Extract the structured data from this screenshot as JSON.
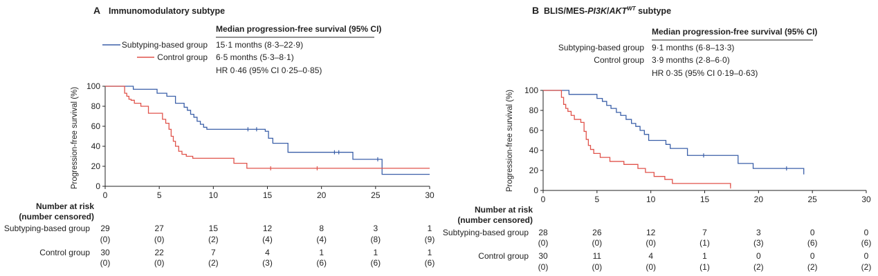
{
  "panels": [
    {
      "label": "A",
      "title": "Immunomodulatory subtype",
      "title_sup": "",
      "header": "Median progression-free survival (95% CI)",
      "rows": [
        {
          "name": "Subtyping-based group",
          "value": "15·1 months (8·3–22·9)"
        },
        {
          "name": "Control group",
          "value": "6·5 months (5·3–8·1)"
        }
      ],
      "hr": "HR 0·46 (95% CI 0·25–0·85)",
      "risk": {
        "header_line1": "Number at risk",
        "header_line2": "(number censored)",
        "groups": [
          {
            "name": "Subtyping-based group",
            "at_risk": [
              "29",
              "27",
              "15",
              "12",
              "8",
              "3",
              "1"
            ],
            "censored": [
              "(0)",
              "(0)",
              "(2)",
              "(4)",
              "(4)",
              "(8)",
              "(9)"
            ]
          },
          {
            "name": "Control group",
            "at_risk": [
              "30",
              "22",
              "7",
              "4",
              "1",
              "1",
              "1"
            ],
            "censored": [
              "(0)",
              "(0)",
              "(2)",
              "(3)",
              "(6)",
              "(6)",
              "(6)"
            ]
          }
        ]
      }
    },
    {
      "label": "B",
      "title": "BLIS/MES-",
      "title_italic": "PI3K",
      "title_mid": "/",
      "title_italic2": "AKT",
      "title_sup": "WT",
      "title_end": " subtype",
      "header": "Median progression-free survival (95% CI)",
      "rows": [
        {
          "name": "Subtyping-based group",
          "value": "9·1 months (6·8–13·3)"
        },
        {
          "name": "Control group",
          "value": "3·9 months (2·8–6·0)"
        }
      ],
      "hr": "HR 0·35 (95% CI 0·19–0·63)",
      "risk": {
        "header_line1": "Number at risk",
        "header_line2": "(number censored)",
        "groups": [
          {
            "name": "Subtyping-based group",
            "at_risk": [
              "28",
              "26",
              "12",
              "7",
              "3",
              "0",
              "0"
            ],
            "censored": [
              "(0)",
              "(0)",
              "(0)",
              "(1)",
              "(3)",
              "(6)",
              "(6)"
            ]
          },
          {
            "name": "Control group",
            "at_risk": [
              "30",
              "11",
              "4",
              "1",
              "0",
              "0",
              "0"
            ],
            "censored": [
              "(0)",
              "(0)",
              "(0)",
              "(1)",
              "(2)",
              "(2)",
              "(2)"
            ]
          }
        ]
      }
    }
  ],
  "chart_data": [
    {
      "type": "line",
      "step": true,
      "title": "Immunomodulatory subtype",
      "xlabel": "",
      "ylabel": "Progression-free survival (%)",
      "xlim": [
        0,
        30
      ],
      "ylim": [
        0,
        100
      ],
      "xticks": [
        "0",
        "5",
        "10",
        "15",
        "20",
        "25",
        "30"
      ],
      "yticks": [
        "0",
        "20",
        "40",
        "60",
        "80",
        "100"
      ],
      "series": [
        {
          "name": "Subtyping-based group",
          "color": "#3a5fa8",
          "x": [
            0,
            2.6,
            4.8,
            5.7,
            6.5,
            7.3,
            7.6,
            7.9,
            8.2,
            8.5,
            8.8,
            9.1,
            9.4,
            14.8,
            15.1,
            15.5,
            16.9,
            22.9,
            25.6,
            30
          ],
          "y": [
            100,
            97,
            93,
            90,
            83,
            79,
            76,
            72,
            69,
            65,
            62,
            59,
            57,
            55,
            48,
            43,
            34,
            27,
            12,
            12
          ],
          "censored_x": [
            13.2,
            14.0,
            21.2,
            21.6,
            25.2
          ]
        },
        {
          "name": "Control group",
          "color": "#e0524a",
          "x": [
            0,
            1.8,
            2.0,
            2.2,
            2.4,
            2.7,
            3.3,
            4.0,
            5.3,
            5.6,
            5.9,
            6.1,
            6.3,
            6.5,
            6.8,
            7.1,
            7.5,
            8.1,
            11.9,
            13.1,
            30
          ],
          "y": [
            100,
            93,
            90,
            87,
            86,
            83,
            80,
            73,
            67,
            63,
            57,
            50,
            45,
            40,
            35,
            32,
            30,
            28,
            23,
            18,
            18
          ],
          "censored_x": [
            15.3,
            19.6
          ]
        }
      ]
    },
    {
      "type": "line",
      "step": true,
      "title": "BLIS/MES-PI3K/AKTWT subtype",
      "xlabel": "",
      "ylabel": "Progression-free survival (%)",
      "xlim": [
        0,
        30
      ],
      "ylim": [
        0,
        100
      ],
      "xticks": [
        "0",
        "5",
        "10",
        "15",
        "20",
        "25",
        "30"
      ],
      "yticks": [
        "0",
        "20",
        "40",
        "60",
        "80",
        "100"
      ],
      "series": [
        {
          "name": "Subtyping-based group",
          "color": "#3a5fa8",
          "x": [
            0,
            2.4,
            5.0,
            5.5,
            5.9,
            6.3,
            6.8,
            7.2,
            7.7,
            8.2,
            8.6,
            9.0,
            9.4,
            9.8,
            11.4,
            11.8,
            13.4,
            18.1,
            19.5,
            24.2
          ],
          "y": [
            100,
            96,
            92,
            89,
            85,
            82,
            78,
            75,
            71,
            67,
            64,
            60,
            56,
            50,
            46,
            42,
            35,
            27,
            22,
            16
          ],
          "censored_x": [
            14.9,
            22.6
          ]
        },
        {
          "name": "Control group",
          "color": "#e0524a",
          "x": [
            0,
            1.7,
            1.9,
            2.1,
            2.3,
            2.6,
            2.9,
            3.5,
            3.8,
            4.0,
            4.2,
            4.4,
            4.7,
            5.3,
            6.2,
            7.5,
            8.8,
            9.5,
            10.3,
            11.3,
            12.0,
            17.4
          ],
          "y": [
            100,
            93,
            86,
            82,
            79,
            75,
            71,
            68,
            59,
            51,
            45,
            41,
            37,
            33,
            29,
            26,
            22,
            18,
            14,
            11,
            7,
            4
          ],
          "censored_x": [
            17.4
          ]
        }
      ]
    }
  ]
}
